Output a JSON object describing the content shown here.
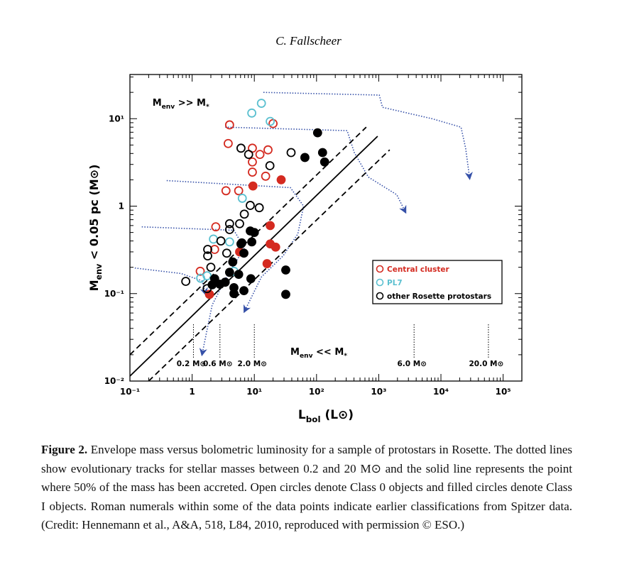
{
  "header": "C. Fallscheer",
  "chart_data": {
    "type": "scatter",
    "log_x": true,
    "log_y": true,
    "xlim": [
      0.1,
      200000
    ],
    "ylim": [
      0.01,
      32
    ],
    "xticks": [
      {
        "value": 0.1,
        "label": "10⁻¹"
      },
      {
        "value": 1,
        "label": "1"
      },
      {
        "value": 10,
        "label": "10¹"
      },
      {
        "value": 100,
        "label": "10²"
      },
      {
        "value": 1000,
        "label": "10³"
      },
      {
        "value": 10000,
        "label": "10⁴"
      },
      {
        "value": 100000,
        "label": "10⁵"
      }
    ],
    "yticks": [
      {
        "value": 0.01,
        "label": "10⁻²"
      },
      {
        "value": 0.1,
        "label": "10⁻¹"
      },
      {
        "value": 1,
        "label": "1"
      },
      {
        "value": 10,
        "label": "10¹"
      }
    ],
    "x_label": [
      "L",
      "bol",
      " (L⊙)"
    ],
    "y_label": [
      "M",
      "env",
      " < 0.05 pc  (M⊙)"
    ],
    "legend_position": "right",
    "series": [
      {
        "name": "Central cluster",
        "color": "#d42a20",
        "x": [
          4.0,
          3.8,
          9.3,
          12.3,
          16.6,
          9.3,
          9.3,
          15.2,
          3.5,
          5.6,
          9.5,
          27,
          2.4,
          18,
          2.3,
          5.8,
          18,
          22,
          16,
          1.35,
          1.9,
          20
        ],
        "values": [
          8.5,
          5.2,
          4.6,
          3.9,
          4.4,
          3.2,
          2.45,
          2.2,
          1.5,
          1.5,
          1.7,
          2.0,
          0.58,
          0.6,
          0.32,
          0.3,
          0.37,
          0.34,
          0.22,
          0.18,
          0.098,
          8.8
        ],
        "filled": [
          false,
          false,
          false,
          false,
          false,
          false,
          false,
          false,
          false,
          false,
          true,
          true,
          false,
          true,
          false,
          true,
          true,
          true,
          true,
          false,
          true,
          false
        ]
      },
      {
        "name": "PL7",
        "color": "#5bc0d0",
        "x": [
          9.1,
          13,
          18,
          6.4,
          2.2,
          4.0,
          4.7,
          1.74,
          1.37
        ],
        "values": [
          11.6,
          15,
          9.3,
          1.23,
          0.42,
          0.39,
          0.18,
          0.16,
          0.15
        ],
        "filled": [
          false,
          false,
          false,
          false,
          false,
          false,
          false,
          false,
          false
        ]
      },
      {
        "name": "other Rosette protostars",
        "color": "#000000",
        "x": [
          6.1,
          8.1,
          17.8,
          39,
          8.6,
          12,
          6.9,
          5.8,
          4.0,
          4.0,
          2.9,
          1.78,
          1.78,
          3.6,
          6.1,
          2.0,
          0.79,
          1.74,
          104,
          65,
          125,
          135,
          8.6,
          10,
          6.3,
          9.1,
          6.8,
          4.5,
          4.0,
          5.6,
          2.3,
          2.1,
          2.8,
          3.4,
          4.7,
          6.8,
          4.7,
          8.8,
          32,
          32
        ],
        "values": [
          4.6,
          3.9,
          2.9,
          4.1,
          1.02,
          0.96,
          0.81,
          0.63,
          0.63,
          0.54,
          0.4,
          0.32,
          0.27,
          0.29,
          0.37,
          0.2,
          0.138,
          0.114,
          6.9,
          3.6,
          4.1,
          3.2,
          0.52,
          0.5,
          0.38,
          0.39,
          0.29,
          0.23,
          0.175,
          0.166,
          0.148,
          0.126,
          0.128,
          0.135,
          0.117,
          0.108,
          0.1,
          0.148,
          0.186,
          0.098
        ],
        "filled": [
          false,
          false,
          false,
          false,
          false,
          false,
          false,
          false,
          false,
          false,
          false,
          false,
          false,
          false,
          false,
          false,
          false,
          false,
          true,
          true,
          true,
          true,
          true,
          true,
          true,
          true,
          true,
          true,
          true,
          true,
          true,
          true,
          true,
          true,
          true,
          true,
          true,
          true,
          true,
          true
        ]
      }
    ],
    "lines": [
      {
        "style": "solid",
        "x": [
          0.1,
          960
        ],
        "y": [
          0.0114,
          6.3
        ]
      },
      {
        "style": "dashed",
        "x": [
          0.1,
          630
        ],
        "y": [
          0.02,
          8.0
        ]
      },
      {
        "style": "dashed",
        "x": [
          0.2,
          1500
        ],
        "y": [
          0.01,
          4.4
        ]
      }
    ],
    "tracks": {
      "color": "#3550a8",
      "items": [
        {
          "x": [
            14,
            1020,
            1150,
            7200,
            21000,
            25000,
            29000
          ],
          "y": [
            20,
            18.6,
            13.5,
            10,
            8.0,
            4.55,
            2.07
          ]
        },
        {
          "x": [
            3.4,
            310,
            405,
            680,
            1950,
            2700
          ],
          "y": [
            8,
            7.3,
            4.1,
            2.15,
            1.35,
            0.85
          ]
        },
        {
          "x": [
            0.39,
            38,
            62,
            50,
            29,
            13,
            6.9
          ],
          "y": [
            1.96,
            1.63,
            1.0,
            0.48,
            0.27,
            0.155,
            0.062
          ]
        },
        {
          "x": [
            0.155,
            4.7,
            6.9,
            3.6,
            2.1,
            1.44
          ],
          "y": [
            0.58,
            0.53,
            0.33,
            0.157,
            0.074,
            0.02
          ]
        },
        {
          "x": [
            0.12,
            0.66,
            1.44,
            1.65
          ],
          "y": [
            0.196,
            0.17,
            0.14,
            0.098
          ]
        }
      ]
    },
    "mass_labels": [
      {
        "text": "0.2 M⊙",
        "x": 1.05
      },
      {
        "text": "0.6 M⊙",
        "x": 2.8
      },
      {
        "text": "2.0 M⊙",
        "x": 10
      },
      {
        "text": "6.0 M⊙",
        "x": 3700
      },
      {
        "text": "20.0 M⊙",
        "x": 58000
      }
    ],
    "annotations": [
      {
        "text": [
          "M",
          "env",
          " >> M",
          "*"
        ],
        "x": 0.23,
        "y": 14
      },
      {
        "text": [
          "M",
          "env",
          " << M",
          "*"
        ],
        "x": 38,
        "y": 0.02
      }
    ]
  },
  "caption": {
    "label": "Figure 2.",
    "text": "Envelope mass versus bolometric luminosity for a sample of protostars in Rosette. The dotted lines show evolutionary tracks for stellar masses between 0.2 and 20 M⊙ and the solid line represents the point where 50% of the mass has been accreted. Open circles denote Class 0 objects and filled circles denote Class I objects. Roman numerals within some of the data points indicate earlier classifications from Spitzer data. (Credit: Hennemann et al., A&A, 518, L84, 2010, reproduced with permission © ESO.)"
  }
}
